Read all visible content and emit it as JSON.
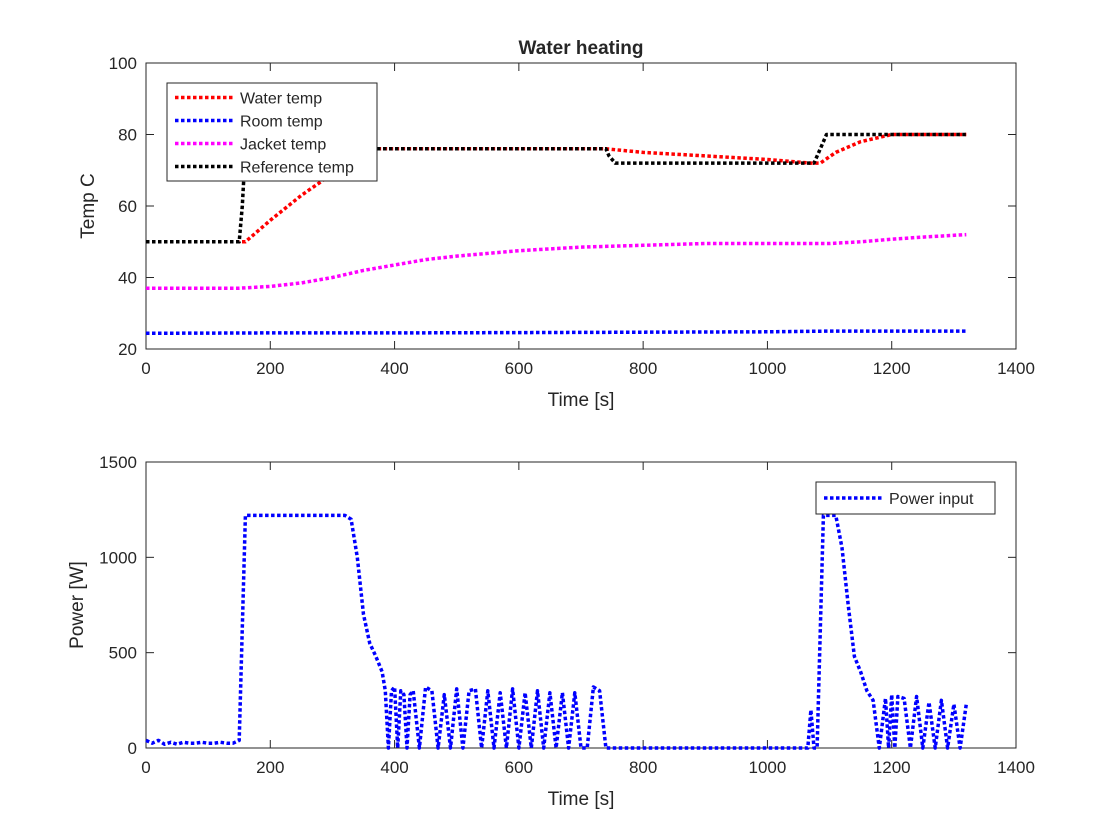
{
  "chart_data": [
    {
      "type": "line",
      "title": "Water heating",
      "xlabel": "Time [s]",
      "ylabel": "Temp C",
      "xlim": [
        0,
        1400
      ],
      "ylim": [
        20,
        100
      ],
      "xticks": [
        0,
        200,
        400,
        600,
        800,
        1000,
        1200,
        1400
      ],
      "yticks": [
        20,
        40,
        60,
        80,
        100
      ],
      "grid": false,
      "legend": "top-left",
      "series": [
        {
          "name": "Water temp",
          "color": "#ff0000",
          "x": [
            0,
            155,
            160,
            200,
            250,
            300,
            330,
            350,
            400,
            500,
            600,
            740,
            800,
            900,
            1000,
            1070,
            1085,
            1110,
            1150,
            1200,
            1320
          ],
          "y": [
            50,
            50,
            50,
            56,
            63,
            69,
            73,
            76,
            76,
            76,
            76,
            76,
            75,
            74,
            73,
            72,
            72,
            75,
            78,
            80,
            80
          ]
        },
        {
          "name": "Room temp",
          "color": "#0000ff",
          "x": [
            0,
            200,
            400,
            600,
            800,
            1000,
            1100,
            1320
          ],
          "y": [
            24.4,
            24.5,
            24.5,
            24.6,
            24.7,
            24.8,
            25,
            25
          ]
        },
        {
          "name": "Jacket temp",
          "color": "#ff00ff",
          "x": [
            0,
            150,
            200,
            250,
            300,
            350,
            400,
            450,
            500,
            600,
            700,
            800,
            900,
            1000,
            1100,
            1150,
            1200,
            1250,
            1320
          ],
          "y": [
            37,
            37,
            37.5,
            38.5,
            40,
            42,
            43.5,
            45,
            46,
            47.5,
            48.5,
            49,
            49.5,
            49.5,
            49.5,
            50,
            50.7,
            51.3,
            52
          ]
        },
        {
          "name": "Reference temp",
          "color": "#000000",
          "x": [
            0,
            150,
            155,
            160,
            740,
            745,
            755,
            1075,
            1085,
            1095,
            1320
          ],
          "y": [
            50,
            50,
            60,
            76,
            76,
            74,
            72,
            72,
            76,
            80,
            80
          ]
        }
      ]
    },
    {
      "type": "line",
      "title": "",
      "xlabel": "Time [s]",
      "ylabel": "Power [W]",
      "xlim": [
        0,
        1400
      ],
      "ylim": [
        0,
        1500
      ],
      "xticks": [
        0,
        200,
        400,
        600,
        800,
        1000,
        1200,
        1400
      ],
      "yticks": [
        0,
        500,
        1000,
        1500
      ],
      "grid": false,
      "legend": "top-right",
      "series": [
        {
          "name": "Power input",
          "color": "#0000ff",
          "x": [
            0,
            10,
            20,
            30,
            40,
            50,
            60,
            70,
            80,
            90,
            100,
            110,
            120,
            130,
            140,
            150,
            160,
            320,
            330,
            340,
            350,
            360,
            370,
            380,
            385,
            390,
            395,
            400,
            405,
            410,
            415,
            420,
            425,
            430,
            440,
            450,
            460,
            470,
            480,
            490,
            500,
            510,
            520,
            530,
            540,
            550,
            560,
            570,
            580,
            590,
            600,
            610,
            620,
            630,
            640,
            650,
            660,
            670,
            680,
            690,
            700,
            710,
            720,
            730,
            740,
            1060,
            1065,
            1070,
            1075,
            1080,
            1090,
            1110,
            1120,
            1130,
            1140,
            1150,
            1160,
            1170,
            1180,
            1190,
            1195,
            1200,
            1205,
            1210,
            1220,
            1230,
            1240,
            1250,
            1260,
            1270,
            1280,
            1290,
            1300,
            1310,
            1320
          ],
          "y": [
            40,
            25,
            40,
            20,
            30,
            20,
            30,
            25,
            25,
            30,
            25,
            25,
            30,
            25,
            25,
            40,
            1220,
            1220,
            1200,
            1000,
            700,
            550,
            480,
            400,
            300,
            0,
            300,
            320,
            0,
            300,
            280,
            0,
            280,
            300,
            0,
            320,
            300,
            0,
            280,
            0,
            310,
            0,
            300,
            310,
            0,
            300,
            0,
            290,
            0,
            310,
            0,
            290,
            0,
            300,
            0,
            290,
            0,
            290,
            0,
            290,
            0,
            0,
            320,
            300,
            0,
            0,
            0,
            200,
            0,
            0,
            1220,
            1220,
            1050,
            750,
            480,
            400,
            300,
            250,
            0,
            260,
            0,
            280,
            0,
            270,
            260,
            0,
            270,
            0,
            240,
            0,
            250,
            0,
            230,
            0,
            230
          ]
        }
      ]
    }
  ]
}
